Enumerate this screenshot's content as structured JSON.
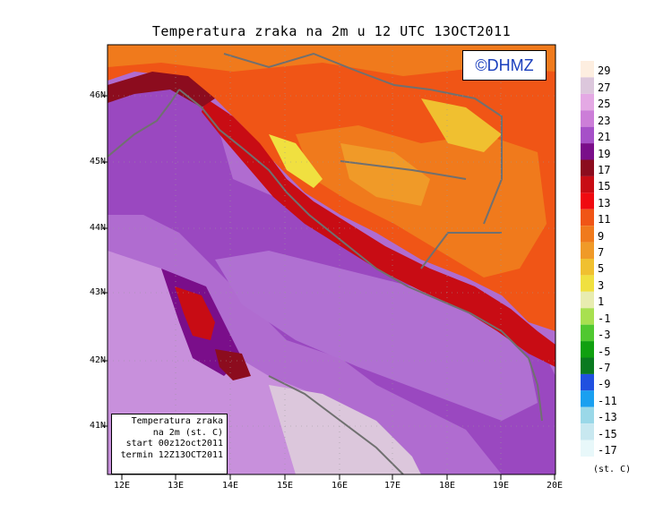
{
  "title": "Temperatura zraka na 2m u 12 UTC 13OCT2011",
  "logo": "©DHMZ",
  "info": {
    "line1": "Temperatura zraka",
    "line2": "na 2m (st. C)",
    "line3": "start 00z12oct2011",
    "line4": "termin 12Z13OCT2011"
  },
  "lat_ticks": [
    "46N",
    "45N",
    "44N",
    "43N",
    "42N",
    "41N"
  ],
  "lon_ticks": [
    "12E",
    "13E",
    "14E",
    "15E",
    "16E",
    "17E",
    "18E",
    "19E",
    "20E"
  ],
  "colorbar": {
    "unit": "(st. C)",
    "labels": [
      "29",
      "27",
      "25",
      "23",
      "21",
      "19",
      "17",
      "15",
      "13",
      "11",
      "9",
      "7",
      "5",
      "3",
      "1",
      "-1",
      "-3",
      "-5",
      "-7",
      "-9",
      "-11",
      "-13",
      "-15",
      "-17"
    ],
    "colors": [
      "#fdeee0",
      "#dcc7dc",
      "#e4a9e4",
      "#cc7ed8",
      "#a650c8",
      "#7a0e8a",
      "#8c0c1e",
      "#c80c14",
      "#f00a10",
      "#f05516",
      "#f07a1c",
      "#f09a28",
      "#f0c030",
      "#f0e040",
      "#e8ecb0",
      "#a8e050",
      "#50c830",
      "#10a010",
      "#0a7a20",
      "#2050e0",
      "#1aa0f0",
      "#9ad8e8",
      "#c8e8f0",
      "#e8f8fa"
    ]
  }
}
